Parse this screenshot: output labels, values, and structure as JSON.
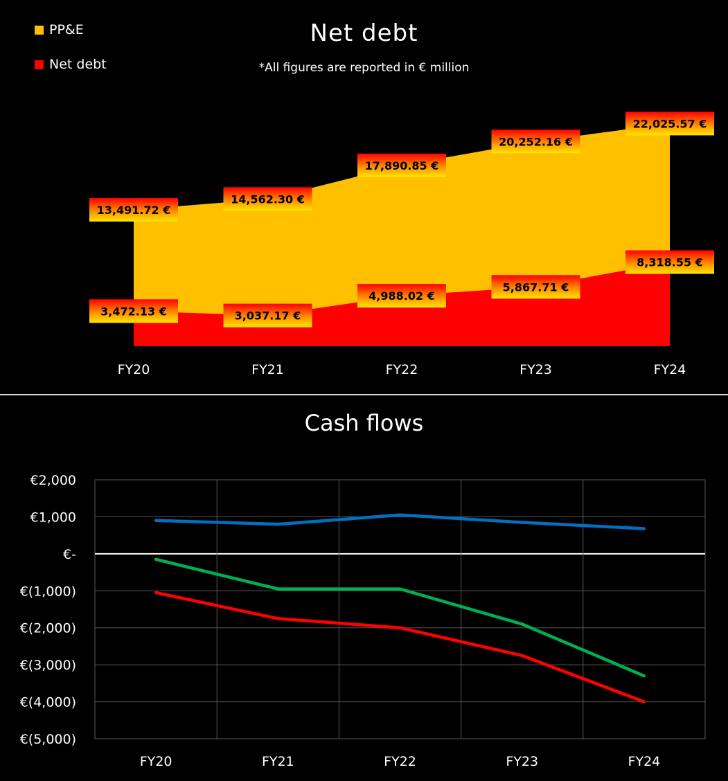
{
  "chart_data": [
    {
      "type": "area",
      "title": "Net debt",
      "subtitle": "*All figures are reported in € million",
      "categories": [
        "FY20",
        "FY21",
        "FY22",
        "FY23",
        "FY24"
      ],
      "series": [
        {
          "name": "PP&E",
          "color": "#FFC000",
          "values": [
            13491.72,
            14562.3,
            17890.85,
            20252.16,
            22025.57
          ],
          "labels": [
            "13,491.72 €",
            "14,562.30 €",
            "17,890.85 €",
            "20,252.16 €",
            "22,025.57 €"
          ]
        },
        {
          "name": "Net debt",
          "color": "#FF0000",
          "values": [
            3472.13,
            3037.17,
            4988.02,
            5867.71,
            8318.55
          ],
          "labels": [
            "3,472.13 €",
            "3,037.17 €",
            "4,988.02 €",
            "5,867.71 €",
            "8,318.55 €"
          ]
        }
      ],
      "legend": "top-left",
      "ylim": [
        0,
        30000
      ],
      "grid": false
    },
    {
      "type": "line",
      "title": "Cash flows",
      "categories": [
        "FY20",
        "FY21",
        "FY22",
        "FY23",
        "FY24"
      ],
      "series": [
        {
          "color": "#0070C0",
          "values": [
            900,
            800,
            1050,
            850,
            680
          ]
        },
        {
          "color": "#00B050",
          "values": [
            -150,
            -950,
            -950,
            -1900,
            -3300
          ]
        },
        {
          "color": "#FF0000",
          "values": [
            -1050,
            -1750,
            -2000,
            -2750,
            -4000
          ]
        }
      ],
      "yticks": [
        "€2,000",
        "€1,000",
        "€-",
        "€(1,000)",
        "€(2,000)",
        "€(3,000)",
        "€(4,000)",
        "€(5,000)"
      ],
      "ylim": [
        -5000,
        2000
      ],
      "grid": true,
      "legend": "none"
    }
  ]
}
